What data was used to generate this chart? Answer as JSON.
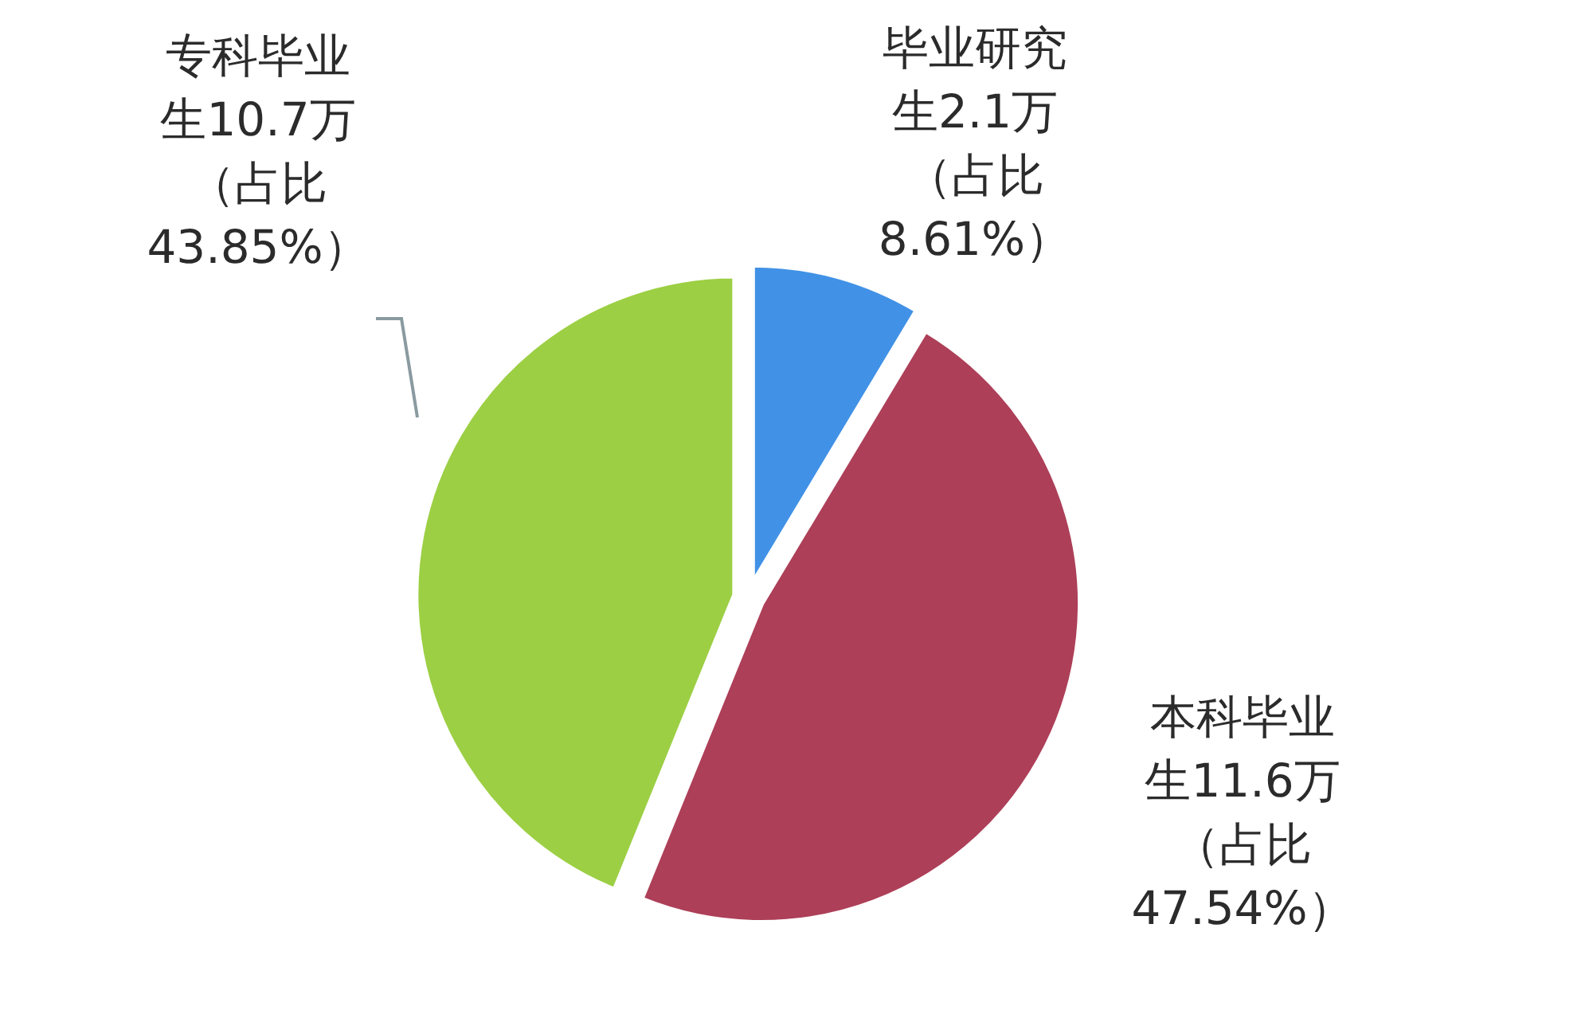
{
  "chart_data": {
    "type": "pie",
    "categories": [
      "毕业研究生",
      "本科毕业生",
      "专科毕业生"
    ],
    "values": [
      8.61,
      47.54,
      43.85
    ],
    "value_labels": [
      "2.1万（占比8.61%）",
      "11.6万（占比47.54%）",
      "10.7万（占比43.85%）"
    ],
    "colors": [
      "#4192e6",
      "#ad3f58",
      "#9ccf44"
    ]
  }
}
